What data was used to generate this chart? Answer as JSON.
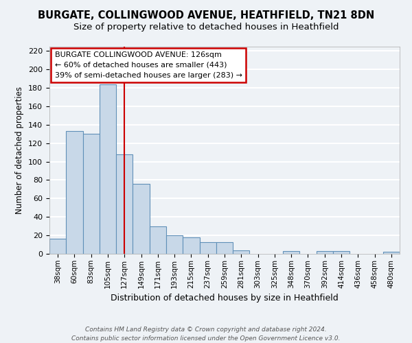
{
  "title": "BURGATE, COLLINGWOOD AVENUE, HEATHFIELD, TN21 8DN",
  "subtitle": "Size of property relative to detached houses in Heathfield",
  "xlabel": "Distribution of detached houses by size in Heathfield",
  "ylabel": "Number of detached properties",
  "bar_labels": [
    "38sqm",
    "60sqm",
    "83sqm",
    "105sqm",
    "127sqm",
    "149sqm",
    "171sqm",
    "193sqm",
    "215sqm",
    "237sqm",
    "259sqm",
    "281sqm",
    "303sqm",
    "325sqm",
    "348sqm",
    "370sqm",
    "392sqm",
    "414sqm",
    "436sqm",
    "458sqm",
    "480sqm"
  ],
  "bar_values": [
    16,
    133,
    130,
    184,
    108,
    76,
    30,
    20,
    18,
    13,
    13,
    4,
    0,
    0,
    3,
    0,
    3,
    3,
    0,
    0,
    2
  ],
  "bar_color": "#c8d8e8",
  "bar_edgecolor": "#6090b8",
  "vline_x_index": 4,
  "vline_color": "#cc0000",
  "ylim": [
    0,
    225
  ],
  "yticks": [
    0,
    20,
    40,
    60,
    80,
    100,
    120,
    140,
    160,
    180,
    200,
    220
  ],
  "annotation_title": "BURGATE COLLINGWOOD AVENUE: 126sqm",
  "annotation_line1": "← 60% of detached houses are smaller (443)",
  "annotation_line2": "39% of semi-detached houses are larger (283) →",
  "annotation_box_color": "#ffffff",
  "annotation_box_edgecolor": "#cc0000",
  "footer_line1": "Contains HM Land Registry data © Crown copyright and database right 2024.",
  "footer_line2": "Contains public sector information licensed under the Open Government Licence v3.0.",
  "background_color": "#eef2f6",
  "plot_background_color": "#eef2f6",
  "grid_color": "#ffffff",
  "title_fontsize": 10.5,
  "subtitle_fontsize": 9.5,
  "ylabel_fontsize": 8.5,
  "xlabel_fontsize": 9,
  "tick_fontsize": 8,
  "xtick_fontsize": 7.5,
  "annotation_fontsize": 8,
  "footer_fontsize": 6.5
}
